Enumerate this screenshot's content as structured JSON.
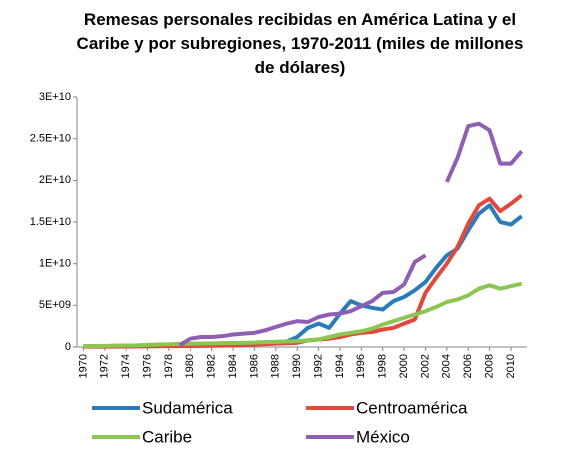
{
  "chart_data": {
    "type": "line",
    "title": "Remesas personales recibidas en América Latina y el Caribe y por subregiones, 1970-2011 (miles de millones de dólares)",
    "x": [
      1970,
      1971,
      1972,
      1973,
      1974,
      1975,
      1976,
      1977,
      1978,
      1979,
      1980,
      1981,
      1982,
      1983,
      1984,
      1985,
      1986,
      1987,
      1988,
      1989,
      1990,
      1991,
      1992,
      1993,
      1994,
      1995,
      1996,
      1997,
      1998,
      1999,
      2000,
      2001,
      2002,
      2003,
      2004,
      2005,
      2006,
      2007,
      2008,
      2009,
      2010,
      2011
    ],
    "xlim": [
      1969.4,
      2011.5
    ],
    "xticks": [
      1970,
      1972,
      1974,
      1976,
      1978,
      1980,
      1982,
      1984,
      1986,
      1988,
      1990,
      1992,
      1994,
      1996,
      1998,
      2000,
      2002,
      2004,
      2006,
      2008,
      2010
    ],
    "ylim": [
      0,
      30000000000
    ],
    "yticks": [
      0,
      {
        "value": 5000000000,
        "label": "5E+09"
      },
      {
        "value": 10000000000,
        "label": "1E+10"
      },
      {
        "value": 15000000000,
        "label": "1.5E+10"
      },
      {
        "value": 20000000000,
        "label": "2E+10"
      },
      {
        "value": 25000000000,
        "label": "2.5E+10"
      },
      {
        "value": 30000000000,
        "label": "3E+10"
      }
    ],
    "grid": false,
    "legend": "bottom",
    "series": [
      {
        "name": "Sudamérica",
        "color": "#2b7bba",
        "values": [
          100000000.0,
          100000000.0,
          100000000.0,
          120000000.0,
          150000000.0,
          180000000.0,
          200000000.0,
          220000000.0,
          250000000.0,
          280000000.0,
          300000000.0,
          320000000.0,
          350000000.0,
          360000000.0,
          400000000.0,
          450000000.0,
          500000000.0,
          550000000.0,
          600000000.0,
          650000000.0,
          1200000000.0,
          2300000000.0,
          2800000000.0,
          2300000000.0,
          4000000000.0,
          5500000000.0,
          5000000000.0,
          4700000000.0,
          4500000000.0,
          5500000000.0,
          6000000000.0,
          6800000000.0,
          7800000000.0,
          9500000000.0,
          11000000000.0,
          11800000000.0,
          14000000000.0,
          16000000000.0,
          17000000000.0,
          15000000000.0,
          14700000000.0,
          15700000000.0
        ]
      },
      {
        "name": "Centroamérica",
        "color": "#e0493b",
        "values": [
          50000000.0,
          50000000.0,
          50000000.0,
          50000000.0,
          60000000.0,
          70000000.0,
          80000000.0,
          90000000.0,
          100000000.0,
          110000000.0,
          120000000.0,
          130000000.0,
          150000000.0,
          170000000.0,
          200000000.0,
          250000000.0,
          300000000.0,
          350000000.0,
          400000000.0,
          450000000.0,
          500000000.0,
          800000000.0,
          900000000.0,
          1000000000.0,
          1200000000.0,
          1500000000.0,
          1700000000.0,
          1800000000.0,
          2100000000.0,
          2300000000.0,
          2800000000.0,
          3300000000.0,
          6500000000.0,
          8300000000.0,
          10000000000.0,
          12000000000.0,
          14800000000.0,
          17000000000.0,
          17800000000.0,
          16300000000.0,
          17200000000.0,
          18200000000.0
        ]
      },
      {
        "name": "Caribe",
        "color": "#8cc652",
        "values": [
          100000000.0,
          120000000.0,
          140000000.0,
          160000000.0,
          180000000.0,
          200000000.0,
          250000000.0,
          300000000.0,
          330000000.0,
          370000000.0,
          400000000.0,
          420000000.0,
          440000000.0,
          460000000.0,
          480000000.0,
          500000000.0,
          540000000.0,
          580000000.0,
          620000000.0,
          660000000.0,
          700000000.0,
          800000000.0,
          900000000.0,
          1200000000.0,
          1500000000.0,
          1700000000.0,
          1900000000.0,
          2200000000.0,
          2700000000.0,
          3100000000.0,
          3500000000.0,
          3900000000.0,
          4300000000.0,
          4800000000.0,
          5400000000.0,
          5700000000.0,
          6200000000.0,
          7000000000.0,
          7400000000.0,
          7000000000.0,
          7300000000.0,
          7600000000.0
        ]
      },
      {
        "name": "México",
        "color": "#8e5fb3",
        "values": [
          null,
          null,
          null,
          null,
          null,
          null,
          null,
          null,
          null,
          200000000.0,
          1000000000.0,
          1200000000.0,
          1200000000.0,
          1300000000.0,
          1500000000.0,
          1600000000.0,
          1700000000.0,
          2000000000.0,
          2400000000.0,
          2800000000.0,
          3100000000.0,
          3000000000.0,
          3600000000.0,
          3900000000.0,
          4000000000.0,
          4300000000.0,
          4900000000.0,
          5500000000.0,
          6500000000.0,
          6600000000.0,
          7500000000.0,
          10200000000.0,
          11000000000.0,
          null,
          19800000000.0,
          22700000000.0,
          26500000000.0,
          26800000000.0,
          26000000000.0,
          22000000000.0,
          22000000000.0,
          23500000000.0
        ]
      }
    ]
  }
}
